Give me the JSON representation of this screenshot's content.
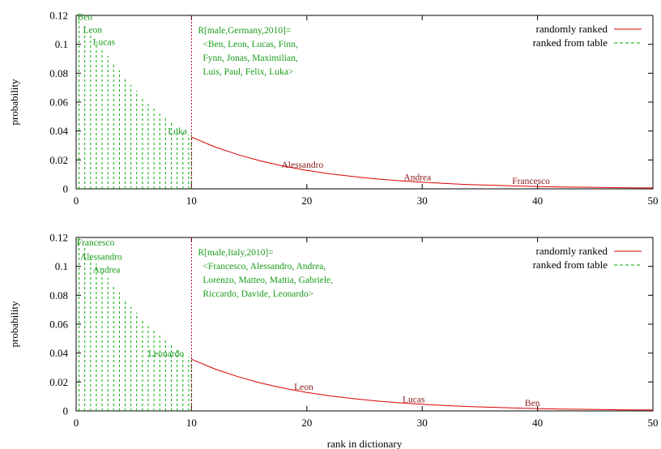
{
  "chart_data": [
    {
      "type": "line",
      "panel": "top",
      "xlabel": "",
      "ylabel": "probability",
      "xlim": [
        0,
        50
      ],
      "ylim": [
        0,
        0.12
      ],
      "xticks": [
        "0",
        "10",
        "20",
        "30",
        "40",
        "50"
      ],
      "yticks": [
        "0",
        "0.02",
        "0.04",
        "0.06",
        "0.08",
        "0.1",
        "0.12"
      ],
      "legend_position": "top-right",
      "series": [
        {
          "name": "randomly ranked",
          "color": "#dd0000",
          "style": "solid",
          "x": [
            10,
            12,
            14,
            16,
            18,
            20,
            22,
            24,
            26,
            28,
            30,
            32,
            34,
            36,
            38,
            40,
            42,
            44,
            46,
            48,
            50
          ],
          "y": [
            0.0358,
            0.0291,
            0.0237,
            0.0193,
            0.0157,
            0.0128,
            0.0104,
            0.0085,
            0.0069,
            0.0056,
            0.0046,
            0.0037,
            0.003,
            0.0025,
            0.002,
            0.0016,
            0.0013,
            0.0011,
            0.0009,
            0.0007,
            0.0006
          ]
        },
        {
          "name": "ranked from table",
          "color": "#00aa00",
          "style": "dashed",
          "x": [
            0.25,
            0.75,
            1.25,
            1.75,
            2.25,
            2.75,
            3.25,
            3.75,
            4.25,
            4.75,
            5.25,
            5.75,
            6.25,
            6.75,
            7.25,
            7.75,
            8.25,
            8.75,
            9.25,
            9.75
          ],
          "y": [
            0.12,
            0.114,
            0.108,
            0.102,
            0.097,
            0.092,
            0.087,
            0.082,
            0.077,
            0.072,
            0.068,
            0.064,
            0.06,
            0.056,
            0.052,
            0.049,
            0.046,
            0.043,
            0.04,
            0.0375
          ]
        }
      ],
      "cutoff_x": 10,
      "point_labels": [
        {
          "text": "Ben",
          "x": 0.1,
          "y": 0.117,
          "color": "green"
        },
        {
          "text": "Leon",
          "x": 0.6,
          "y": 0.108,
          "color": "green"
        },
        {
          "text": "Lucas",
          "x": 1.45,
          "y": 0.0995,
          "color": "green"
        },
        {
          "text": "Luka",
          "x": 7.95,
          "y": 0.0378,
          "color": "green"
        },
        {
          "text": "Alessandro",
          "x": 17.8,
          "y": 0.0145,
          "color": "red"
        },
        {
          "text": "Andrea",
          "x": 28.4,
          "y": 0.0058,
          "color": "red"
        },
        {
          "text": "Francesco",
          "x": 37.8,
          "y": 0.0035,
          "color": "red"
        }
      ],
      "annotation": [
        "R[male,Germany,2010]=",
        "<Ben, Leon, Lucas, Finn,",
        "Fynn, Jonas, Maximilian,",
        "Luis, Paul, Felix, Luka>"
      ]
    },
    {
      "type": "line",
      "panel": "bottom",
      "xlabel": "rank in dictionary",
      "ylabel": "probability",
      "xlim": [
        0,
        50
      ],
      "ylim": [
        0,
        0.12
      ],
      "xticks": [
        "0",
        "10",
        "20",
        "30",
        "40",
        "50"
      ],
      "yticks": [
        "0",
        "0.02",
        "0.04",
        "0.06",
        "0.08",
        "0.1",
        "0.12"
      ],
      "legend_position": "top-right",
      "series": [
        {
          "name": "randomly ranked",
          "color": "#dd0000",
          "style": "solid",
          "x": [
            10,
            12,
            14,
            16,
            18,
            20,
            22,
            24,
            26,
            28,
            30,
            32,
            34,
            36,
            38,
            40,
            42,
            44,
            46,
            48,
            50
          ],
          "y": [
            0.0358,
            0.0291,
            0.0237,
            0.0193,
            0.0157,
            0.0128,
            0.0104,
            0.0085,
            0.0069,
            0.0056,
            0.0046,
            0.0037,
            0.003,
            0.0025,
            0.002,
            0.0016,
            0.0013,
            0.0011,
            0.0009,
            0.0007,
            0.0006
          ]
        },
        {
          "name": "ranked from table",
          "color": "#00aa00",
          "style": "dashed",
          "x": [
            0.25,
            0.75,
            1.25,
            1.75,
            2.25,
            2.75,
            3.25,
            3.75,
            4.25,
            4.75,
            5.25,
            5.75,
            6.25,
            6.75,
            7.25,
            7.75,
            8.25,
            8.75,
            9.25,
            9.75
          ],
          "y": [
            0.12,
            0.114,
            0.108,
            0.102,
            0.097,
            0.092,
            0.087,
            0.082,
            0.077,
            0.072,
            0.068,
            0.064,
            0.06,
            0.056,
            0.052,
            0.049,
            0.046,
            0.043,
            0.04,
            0.0375
          ]
        }
      ],
      "cutoff_x": 10,
      "point_labels": [
        {
          "text": "Francesco",
          "x": 0.05,
          "y": 0.1145,
          "color": "green"
        },
        {
          "text": "Alessandro",
          "x": 0.35,
          "y": 0.1045,
          "color": "green"
        },
        {
          "text": "Andrea",
          "x": 1.45,
          "y": 0.0955,
          "color": "green"
        },
        {
          "text": "Leonardo",
          "x": 6.25,
          "y": 0.0375,
          "color": "green"
        },
        {
          "text": "Leon",
          "x": 18.9,
          "y": 0.0145,
          "color": "red"
        },
        {
          "text": "Lucas",
          "x": 28.3,
          "y": 0.0058,
          "color": "red"
        },
        {
          "text": "Ben",
          "x": 38.9,
          "y": 0.0035,
          "color": "red"
        }
      ],
      "annotation": [
        "R[male,Italy,2010]=",
        "<Francesco, Alessandro, Andrea,",
        "Lorenzo, Matteo, Mattia, Gabriele,",
        "Riccardo, Davide, Leonardo>"
      ]
    }
  ]
}
